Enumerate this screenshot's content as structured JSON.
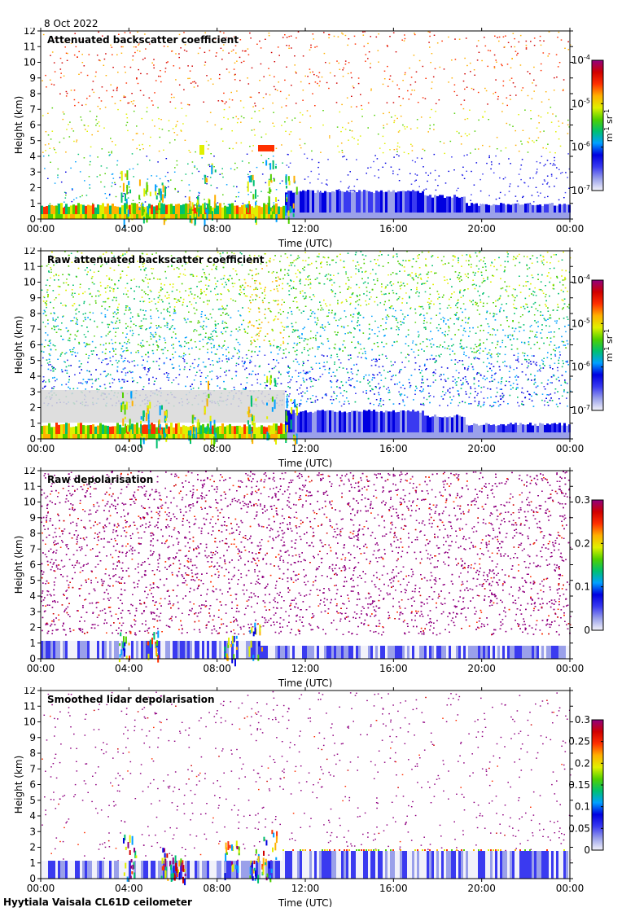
{
  "date_label": "8 Oct 2022",
  "footer": "Hyytiala Vaisala CL61D ceilometer",
  "colors": {
    "scale": [
      "#f2f2fa",
      "#9aa0ea",
      "#3a3af0",
      "#0000e0",
      "#00a0ff",
      "#00c070",
      "#50d000",
      "#e0f000",
      "#ffb000",
      "#ff3000",
      "#d00000",
      "#900080"
    ],
    "noise_grey": "#d8d8d8"
  },
  "chart_data": [
    {
      "type": "heatmap",
      "title": "Attenuated backscatter coefficient",
      "xlabel": "Time (UTC)",
      "ylabel": "Height (km)",
      "xticks": [
        "00:00",
        "04:00",
        "08:00",
        "12:00",
        "16:00",
        "20:00",
        "00:00"
      ],
      "yticks": [
        "0",
        "1",
        "2",
        "3",
        "4",
        "5",
        "6",
        "7",
        "8",
        "9",
        "10",
        "11",
        "12"
      ],
      "xlim_hours": [
        0,
        24
      ],
      "ylim_km": [
        0,
        12
      ],
      "colorbar": {
        "scale": "log",
        "ticks": [
          {
            "base": "10",
            "exp": "-7"
          },
          {
            "base": "10",
            "exp": "-6"
          },
          {
            "base": "10",
            "exp": "-5"
          },
          {
            "base": "10",
            "exp": "-4"
          }
        ],
        "unit": "m-1 sr-1"
      }
    },
    {
      "type": "heatmap",
      "title": "Raw attenuated backscatter coefficient",
      "xlabel": "Time (UTC)",
      "ylabel": "Height (km)",
      "xticks": [
        "00:00",
        "04:00",
        "08:00",
        "12:00",
        "16:00",
        "20:00",
        "00:00"
      ],
      "yticks": [
        "0",
        "1",
        "2",
        "3",
        "4",
        "5",
        "6",
        "7",
        "8",
        "9",
        "10",
        "11",
        "12"
      ],
      "xlim_hours": [
        0,
        24
      ],
      "ylim_km": [
        0,
        12
      ],
      "colorbar": {
        "scale": "log",
        "ticks": [
          {
            "base": "10",
            "exp": "-7"
          },
          {
            "base": "10",
            "exp": "-6"
          },
          {
            "base": "10",
            "exp": "-5"
          },
          {
            "base": "10",
            "exp": "-4"
          }
        ],
        "unit": "m-1 sr-1"
      }
    },
    {
      "type": "heatmap",
      "title": "Raw depolarisation",
      "xlabel": "Time (UTC)",
      "ylabel": "Height (km)",
      "xticks": [
        "00:00",
        "04:00",
        "08:00",
        "12:00",
        "16:00",
        "20:00",
        "00:00"
      ],
      "yticks": [
        "0",
        "1",
        "2",
        "3",
        "4",
        "5",
        "6",
        "7",
        "8",
        "9",
        "10",
        "11",
        "12"
      ],
      "xlim_hours": [
        0,
        24
      ],
      "ylim_km": [
        0,
        12
      ],
      "colorbar": {
        "scale": "linear",
        "ticks": [
          "0",
          "0.1",
          "0.2",
          "0.3"
        ],
        "unit": ""
      }
    },
    {
      "type": "heatmap",
      "title": "Smoothed lidar depolarisation",
      "xlabel": "Time (UTC)",
      "ylabel": "Height (km)",
      "xticks": [
        "00:00",
        "04:00",
        "08:00",
        "12:00",
        "16:00",
        "20:00",
        "00:00"
      ],
      "yticks": [
        "0",
        "1",
        "2",
        "3",
        "4",
        "5",
        "6",
        "7",
        "8",
        "9",
        "10",
        "11",
        "12"
      ],
      "xlim_hours": [
        0,
        24
      ],
      "ylim_km": [
        0,
        12
      ],
      "colorbar": {
        "scale": "linear",
        "ticks": [
          "0",
          "0.05",
          "0.1",
          "0.15",
          "0.2",
          "0.25",
          "0.3"
        ],
        "unit": ""
      }
    }
  ]
}
